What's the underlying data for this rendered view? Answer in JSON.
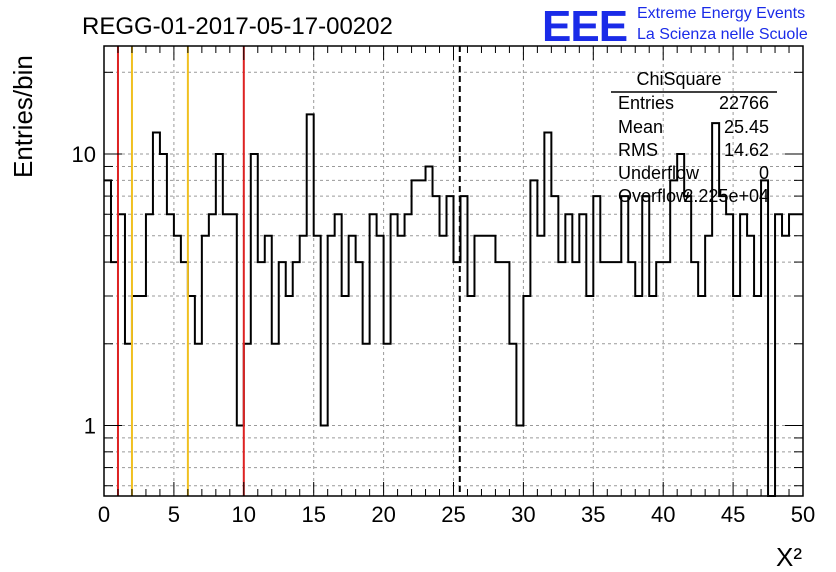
{
  "chart_data": {
    "type": "histogram",
    "title": "REGG-01-2017-05-17-00202",
    "xlabel": "X²",
    "ylabel": "Entries/bin",
    "xlim": [
      0,
      50
    ],
    "ylim": [
      0.55,
      25
    ],
    "y_scale": "log",
    "grid": true,
    "x_ticks": [
      "0",
      "5",
      "10",
      "15",
      "20",
      "25",
      "30",
      "35",
      "40",
      "45",
      "50"
    ],
    "y_ticks": [
      "1",
      "10"
    ],
    "bin_width": 0.5,
    "x": [
      0.0,
      0.5,
      1.0,
      1.5,
      2.0,
      2.5,
      3.0,
      3.5,
      4.0,
      4.5,
      5.0,
      5.5,
      6.0,
      6.5,
      7.0,
      7.5,
      8.0,
      8.5,
      9.0,
      9.5,
      10.0,
      10.5,
      11.0,
      11.5,
      12.0,
      12.5,
      13.0,
      13.5,
      14.0,
      14.5,
      15.0,
      15.5,
      16.0,
      16.5,
      17.0,
      17.5,
      18.0,
      18.5,
      19.0,
      19.5,
      20.0,
      20.5,
      21.0,
      21.5,
      22.0,
      22.5,
      23.0,
      23.5,
      24.0,
      24.5,
      25.0,
      25.5,
      26.0,
      26.5,
      27.0,
      27.5,
      28.0,
      28.5,
      29.0,
      29.5,
      30.0,
      30.5,
      31.0,
      31.5,
      32.0,
      32.5,
      33.0,
      33.5,
      34.0,
      34.5,
      35.0,
      35.5,
      36.0,
      36.5,
      37.0,
      37.5,
      38.0,
      38.5,
      39.0,
      39.5,
      40.0,
      40.5,
      41.0,
      41.5,
      42.0,
      42.5,
      43.0,
      43.5,
      44.0,
      44.5,
      45.0,
      45.5,
      46.0,
      46.5,
      47.0,
      47.5,
      48.0,
      48.5,
      49.0,
      49.5
    ],
    "values": [
      8,
      4,
      6,
      2,
      3,
      3,
      6,
      12,
      10,
      6,
      5,
      4,
      3,
      2,
      5,
      6,
      10,
      6,
      6,
      1,
      2,
      10,
      4,
      5,
      2,
      4,
      3,
      4,
      5,
      14,
      5,
      1,
      5,
      6,
      3,
      5,
      4,
      2,
      6,
      5,
      2,
      6,
      5,
      6,
      8,
      8,
      9,
      7,
      5,
      7,
      4,
      7,
      3,
      5,
      5,
      5,
      4,
      4,
      2,
      1,
      3,
      8,
      5,
      12,
      7,
      4,
      6,
      4,
      6,
      3,
      7,
      4,
      4,
      4,
      7,
      4,
      3,
      7,
      3,
      4,
      4,
      8,
      10,
      7,
      4,
      3,
      5,
      13,
      7,
      6,
      3,
      6,
      5,
      3,
      8,
      0,
      6,
      5,
      6,
      6
    ],
    "vertical_lines": [
      {
        "x": 1,
        "color": "#dd2222",
        "style": "solid"
      },
      {
        "x": 2,
        "color": "#f0c020",
        "style": "solid"
      },
      {
        "x": 6,
        "color": "#f0c020",
        "style": "solid"
      },
      {
        "x": 10,
        "color": "#dd2222",
        "style": "solid"
      },
      {
        "x": 25.45,
        "color": "#000000",
        "style": "dashed"
      }
    ],
    "stats_box": {
      "title": "ChiSquare",
      "rows": [
        {
          "label": "Entries",
          "value": "22766"
        },
        {
          "label": "Mean",
          "value": "25.45"
        },
        {
          "label": "RMS",
          "value": "14.62"
        },
        {
          "label": "Underflow",
          "value": "0"
        },
        {
          "label": "Overflow",
          "value": "2.225e+04"
        }
      ]
    }
  },
  "logo": {
    "text": "EEE",
    "line1": "Extreme Energy Events",
    "line2": "La Scienza nelle Scuole",
    "color": "#1a2be8"
  }
}
